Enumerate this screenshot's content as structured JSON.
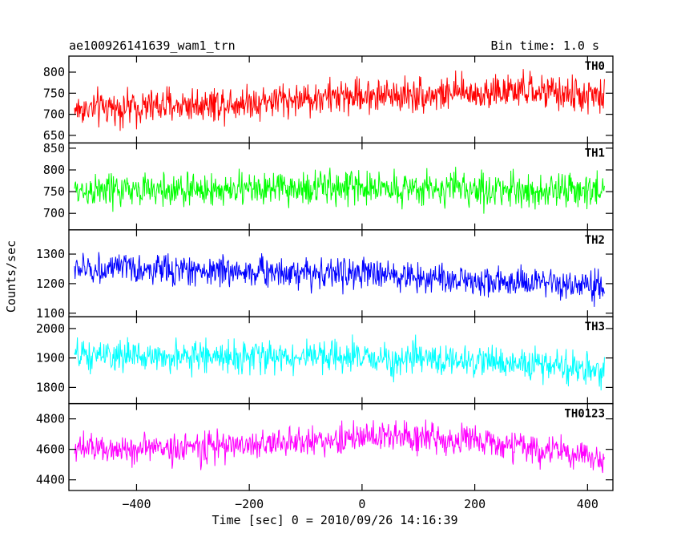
{
  "chart_data": {
    "type": "line",
    "title": "ae100926141639_wam1_trn",
    "bin_time_label": "Bin time: 1.0 s",
    "xlabel": "Time [sec] 0 = 2010/09/26 14:16:39",
    "ylabel": "Counts/sec",
    "x_range": [
      -510,
      430
    ],
    "xlim": [
      -520,
      445
    ],
    "x_ticks": [
      -400,
      -200,
      0,
      200,
      400
    ],
    "x_tick_labels": [
      "−400",
      "−200",
      "0",
      "200",
      "400"
    ],
    "grid": false,
    "panels": [
      {
        "name": "TH0",
        "color": "#ff0000",
        "ylim": [
          632,
          838
        ],
        "y_ticks": [
          650,
          700,
          750,
          800
        ],
        "y_tick_labels": [
          "650",
          "700",
          "750",
          "800"
        ],
        "mean_profile": [
          [
            -510,
            712
          ],
          [
            -350,
            720
          ],
          [
            -200,
            730
          ],
          [
            0,
            745
          ],
          [
            150,
            748
          ],
          [
            300,
            755
          ],
          [
            430,
            740
          ]
        ],
        "noise_amp": 58
      },
      {
        "name": "TH1",
        "color": "#00ff00",
        "ylim": [
          662,
          862
        ],
        "y_ticks": [
          700,
          750,
          800,
          850
        ],
        "y_tick_labels": [
          "700",
          "750",
          "800",
          "850"
        ],
        "mean_profile": [
          [
            -510,
            752
          ],
          [
            -200,
            755
          ],
          [
            0,
            760
          ],
          [
            200,
            755
          ],
          [
            430,
            750
          ]
        ],
        "noise_amp": 55
      },
      {
        "name": "TH2",
        "color": "#0000ff",
        "ylim": [
          1088,
          1382
        ],
        "y_ticks": [
          1100,
          1200,
          1300
        ],
        "y_tick_labels": [
          "1100",
          "1200",
          "1300"
        ],
        "mean_profile": [
          [
            -510,
            1250
          ],
          [
            -300,
            1245
          ],
          [
            0,
            1235
          ],
          [
            200,
            1210
          ],
          [
            430,
            1185
          ]
        ],
        "noise_amp": 72
      },
      {
        "name": "TH3",
        "color": "#00ffff",
        "ylim": [
          1745,
          2040
        ],
        "y_ticks": [
          1800,
          1900,
          2000
        ],
        "y_tick_labels": [
          "1800",
          "1900",
          "2000"
        ],
        "mean_profile": [
          [
            -510,
            1905
          ],
          [
            -200,
            1905
          ],
          [
            0,
            1900
          ],
          [
            200,
            1890
          ],
          [
            430,
            1860
          ]
        ],
        "noise_amp": 75
      },
      {
        "name": "TH0123",
        "color": "#ff00ff",
        "ylim": [
          4330,
          4900
        ],
        "y_ticks": [
          4400,
          4600,
          4800
        ],
        "y_tick_labels": [
          "4400",
          "4600",
          "4800"
        ],
        "mean_profile": [
          [
            -510,
            4600
          ],
          [
            -300,
            4610
          ],
          [
            -100,
            4650
          ],
          [
            50,
            4690
          ],
          [
            200,
            4660
          ],
          [
            430,
            4540
          ]
        ],
        "noise_amp": 140
      }
    ]
  }
}
